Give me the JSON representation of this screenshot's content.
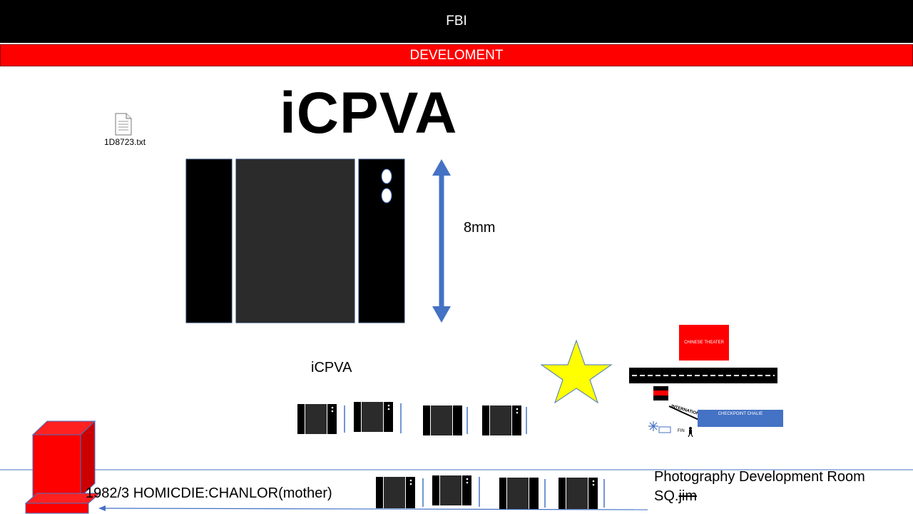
{
  "header": {
    "title": "FBI"
  },
  "banner": {
    "text": "DEVELOMENT"
  },
  "main": {
    "title": "iCPVA",
    "dimension_label": "8mm",
    "subtitle": "iCPVA"
  },
  "file": {
    "name": "1D8723.txt",
    "icon": "text-file-icon"
  },
  "bottom": {
    "caption": "1982/3 HOMICDIE:CHANLOR(mother)",
    "room_title": "Photography Development Room",
    "room_code_prefix": "SQ.",
    "room_code_struck": "jim"
  },
  "map": {
    "theater": "CHINESE THEATER",
    "checkpoint": "CHECKPOINT CHALIE",
    "international": "INTERNATIONAL",
    "fin": "FIN"
  },
  "colors": {
    "black": "#000000",
    "red": "#ff0000",
    "blue": "#4472c4",
    "film_gray": "#2b2b2b",
    "star_yellow": "#ffff00"
  }
}
